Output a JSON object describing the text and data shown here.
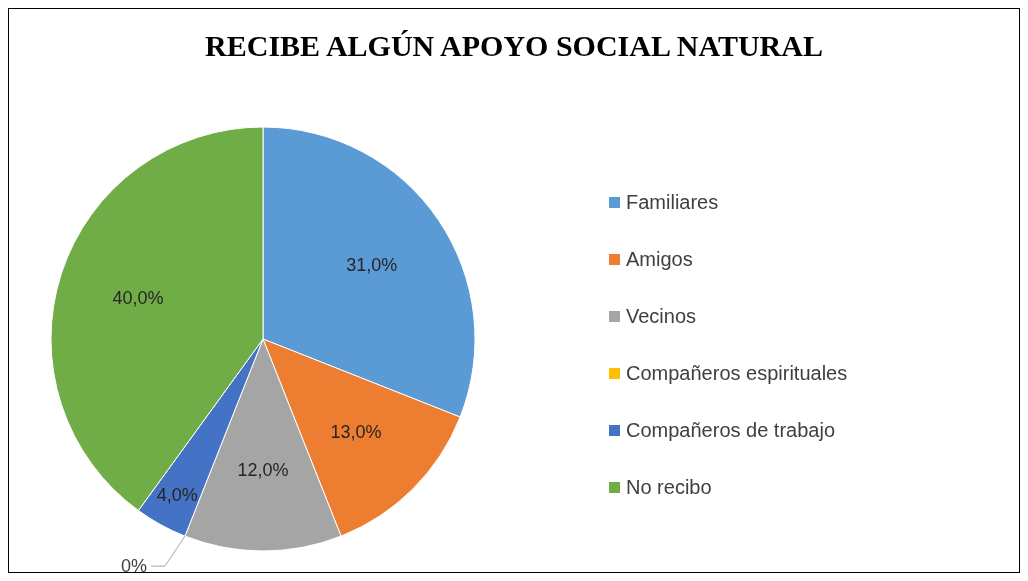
{
  "chart_data": {
    "type": "pie",
    "title": "RECIBE ALGÚN APOYO SOCIAL NATURAL",
    "categories": [
      "Familiares",
      "Amigos",
      "Vecinos",
      "Compañeros espirituales",
      "Compañeros de trabajo",
      "No recibo"
    ],
    "values": [
      31,
      13,
      12,
      0,
      4,
      40
    ],
    "value_labels": [
      "31,0%",
      "13,0%",
      "12,0%",
      "0%",
      "4,0%",
      "40,0%"
    ],
    "colors": [
      "#5b9bd5",
      "#ed7d31",
      "#a5a5a5",
      "#ffc000",
      "#4472c4",
      "#70ad47"
    ],
    "legend": "right"
  }
}
